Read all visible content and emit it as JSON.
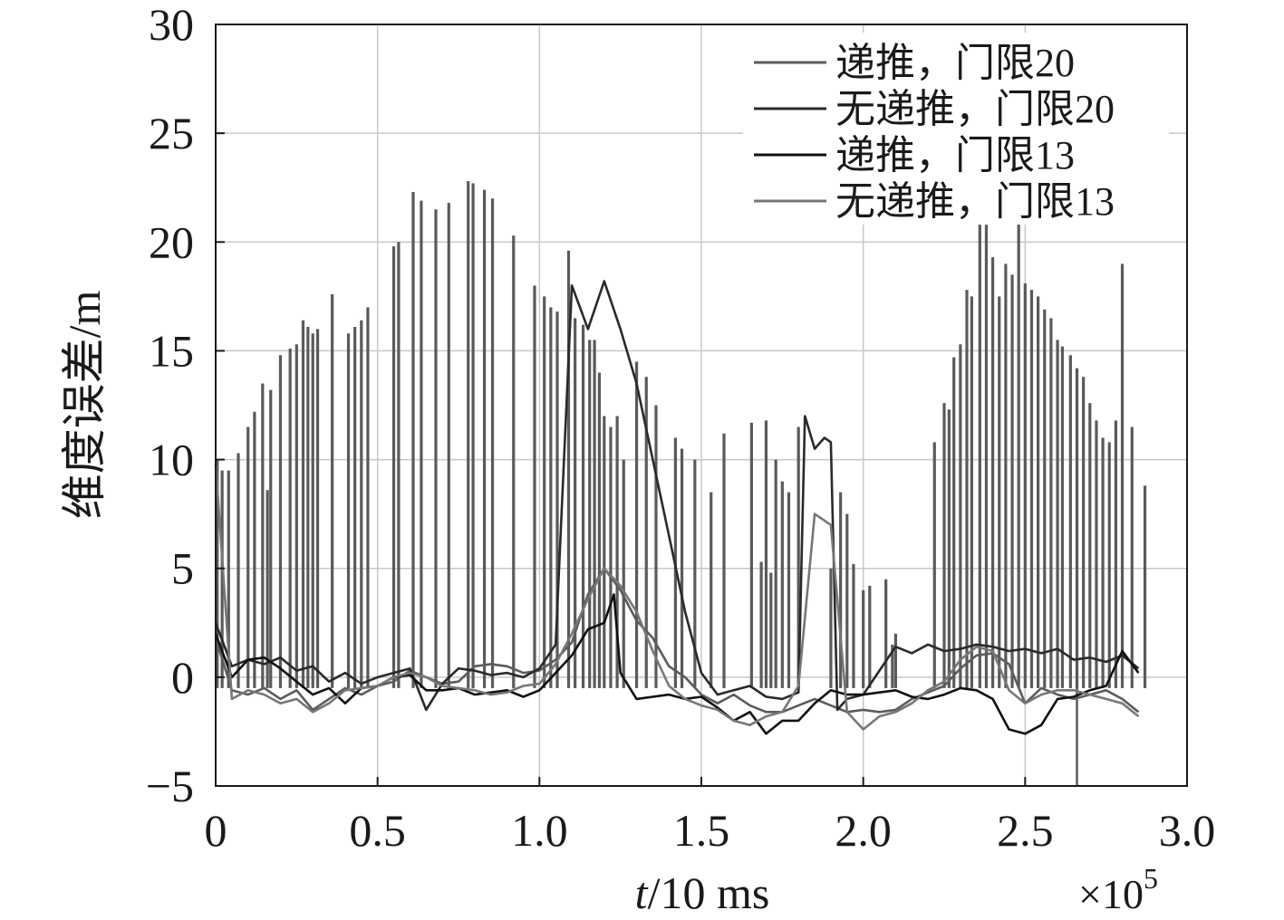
{
  "chart_data": {
    "type": "line",
    "title": "",
    "xlabel_italic": "t",
    "xlabel_rest": "/10 ms",
    "ylabel": "维度误差/m",
    "x_multiplier": "×10",
    "x_multiplier_exp": "5",
    "xlim": [
      0,
      3.0
    ],
    "ylim": [
      -5,
      30
    ],
    "xticks": [
      "0",
      "0.5",
      "1.0",
      "1.5",
      "2.0",
      "2.5",
      "3.0"
    ],
    "yticks": [
      "30",
      "25",
      "20",
      "15",
      "10",
      "5",
      "0",
      "−5"
    ],
    "grid": true,
    "legend_position": "top-right",
    "series": [
      {
        "name": "递推，门限20",
        "color": "#5c5c5c",
        "x": [
          0,
          0.05,
          0.1,
          0.15,
          0.2,
          0.25,
          0.3,
          0.35,
          0.4,
          0.45,
          0.5,
          0.55,
          0.6,
          0.65,
          0.7,
          0.75,
          0.8,
          0.85,
          0.9,
          0.95,
          1.0,
          1.05,
          1.1,
          1.15,
          1.2,
          1.25,
          1.3,
          1.35,
          1.4,
          1.45,
          1.5,
          1.55,
          1.6,
          1.65,
          1.7,
          1.75,
          1.8,
          1.85,
          1.9,
          1.95,
          2.0,
          2.05,
          2.1,
          2.15,
          2.2,
          2.25,
          2.3,
          2.35,
          2.4,
          2.45,
          2.5,
          2.55,
          2.6,
          2.65,
          2.7,
          2.75,
          2.8,
          2.85
        ],
        "y": [
          1.8,
          -0.6,
          -0.8,
          -0.5,
          -1.0,
          -0.6,
          -1.5,
          -1.0,
          -0.5,
          -0.8,
          -0.4,
          -0.2,
          0.3,
          0.0,
          -0.3,
          -0.2,
          0.5,
          0.6,
          0.5,
          0.2,
          0.3,
          0.8,
          1.6,
          3.8,
          5.0,
          4.0,
          2.6,
          1.8,
          0.5,
          0.0,
          -0.8,
          -1.2,
          -0.8,
          -1.3,
          -1.6,
          -1.6,
          -1.3,
          -1.0,
          -1.3,
          -1.6,
          -1.5,
          -1.6,
          -1.5,
          -1.0,
          -0.7,
          -0.4,
          0.4,
          1.0,
          1.1,
          0.6,
          -1.2,
          -0.5,
          -0.8,
          -1.0,
          -0.8,
          -0.6,
          -1.0,
          -1.6
        ]
      },
      {
        "name": "无递推，门限20",
        "color": "#2a2a2a",
        "x": [
          0,
          0.05,
          0.1,
          0.15,
          0.2,
          0.25,
          0.3,
          0.35,
          0.4,
          0.45,
          0.5,
          0.55,
          0.6,
          0.65,
          0.7,
          0.75,
          0.8,
          0.85,
          0.9,
          0.95,
          1.0,
          1.05,
          1.1,
          1.15,
          1.2,
          1.25,
          1.3,
          1.35,
          1.4,
          1.45,
          1.5,
          1.55,
          1.6,
          1.65,
          1.7,
          1.75,
          1.8,
          1.82,
          1.85,
          1.88,
          1.9,
          1.92,
          1.95,
          2.0,
          2.05,
          2.1,
          2.15,
          2.2,
          2.25,
          2.3,
          2.35,
          2.4,
          2.45,
          2.5,
          2.55,
          2.6,
          2.65,
          2.7,
          2.75,
          2.8,
          2.85
        ],
        "y": [
          2.5,
          0.5,
          0.8,
          0.6,
          0.9,
          0.3,
          0.5,
          -0.2,
          0.2,
          -0.3,
          0.0,
          0.2,
          0.4,
          -1.5,
          -0.3,
          0.4,
          0.3,
          0.1,
          0.2,
          0.0,
          0.4,
          1.5,
          18.0,
          16.0,
          18.2,
          16.0,
          13.5,
          10.0,
          6.5,
          3.0,
          0.2,
          -0.8,
          -0.6,
          -0.4,
          -0.9,
          -1.0,
          -0.7,
          12.0,
          10.5,
          11.0,
          10.8,
          -1.5,
          -1.0,
          -0.8,
          0.3,
          1.4,
          1.1,
          1.5,
          1.2,
          1.3,
          1.5,
          1.4,
          1.2,
          1.3,
          1.1,
          1.3,
          0.8,
          0.9,
          0.7,
          1.0,
          0.4
        ]
      },
      {
        "name": "递推，门限13",
        "color": "#111111",
        "x": [
          0,
          0.05,
          0.1,
          0.15,
          0.2,
          0.25,
          0.3,
          0.35,
          0.4,
          0.45,
          0.5,
          0.55,
          0.6,
          0.65,
          0.7,
          0.75,
          0.8,
          0.85,
          0.9,
          0.95,
          1.0,
          1.05,
          1.1,
          1.15,
          1.2,
          1.23,
          1.25,
          1.3,
          1.35,
          1.4,
          1.45,
          1.5,
          1.55,
          1.6,
          1.65,
          1.7,
          1.75,
          1.8,
          1.85,
          1.9,
          1.95,
          2.0,
          2.05,
          2.1,
          2.15,
          2.2,
          2.25,
          2.3,
          2.35,
          2.4,
          2.45,
          2.5,
          2.55,
          2.6,
          2.65,
          2.7,
          2.75,
          2.8,
          2.85
        ],
        "y": [
          2.0,
          0.0,
          0.8,
          0.9,
          0.4,
          -0.2,
          -0.8,
          -0.5,
          -1.2,
          -0.5,
          -0.4,
          0.0,
          0.1,
          -0.6,
          -0.6,
          -0.5,
          -0.8,
          -0.7,
          -0.6,
          -0.9,
          -0.6,
          0.2,
          1.0,
          2.2,
          2.5,
          3.8,
          0.2,
          -1.0,
          -0.9,
          -0.8,
          -1.0,
          -0.9,
          -1.4,
          -2.0,
          -1.6,
          -2.6,
          -2.0,
          -2.0,
          -1.2,
          -0.6,
          -0.8,
          -0.8,
          -0.7,
          -0.6,
          -0.9,
          -1.0,
          -0.8,
          -0.5,
          -0.6,
          -1.0,
          -2.4,
          -2.6,
          -2.2,
          -1.0,
          -0.9,
          -0.6,
          -0.4,
          1.2,
          0.2
        ]
      },
      {
        "name": "无递推，门限13",
        "color": "#777777",
        "x": [
          0,
          0.05,
          0.1,
          0.15,
          0.2,
          0.25,
          0.3,
          0.35,
          0.4,
          0.45,
          0.5,
          0.55,
          0.6,
          0.65,
          0.7,
          0.75,
          0.8,
          0.85,
          0.9,
          0.95,
          1.0,
          1.05,
          1.1,
          1.15,
          1.2,
          1.25,
          1.3,
          1.35,
          1.4,
          1.45,
          1.5,
          1.55,
          1.6,
          1.65,
          1.7,
          1.75,
          1.8,
          1.85,
          1.9,
          1.95,
          2.0,
          2.05,
          2.1,
          2.15,
          2.2,
          2.25,
          2.3,
          2.35,
          2.4,
          2.45,
          2.5,
          2.55,
          2.6,
          2.65,
          2.7,
          2.75,
          2.8,
          2.85
        ],
        "y": [
          9.8,
          -1.0,
          -0.6,
          -0.8,
          -1.2,
          -1.0,
          -1.6,
          -1.2,
          -0.6,
          -0.5,
          -0.4,
          0.0,
          0.2,
          0.0,
          -0.4,
          -0.5,
          -0.6,
          -0.8,
          -0.7,
          -0.4,
          -0.3,
          0.6,
          2.0,
          3.6,
          5.0,
          4.2,
          3.0,
          1.2,
          -0.4,
          -1.0,
          -1.3,
          -1.5,
          -2.0,
          -2.2,
          -1.8,
          -1.6,
          -0.4,
          7.5,
          7.0,
          -1.6,
          -2.4,
          -1.8,
          -1.6,
          -1.2,
          -0.6,
          -0.2,
          0.8,
          1.4,
          1.2,
          -0.6,
          -1.2,
          -0.8,
          -0.6,
          -0.6,
          -0.8,
          -1.0,
          -1.2,
          -1.8
        ]
      }
    ],
    "spike_series": {
      "name": "无递推，门限13",
      "color": "#5a5a5a",
      "peaks": [
        [
          0.005,
          10.0
        ],
        [
          0.02,
          9.5
        ],
        [
          0.04,
          9.5
        ],
        [
          0.07,
          10.3
        ],
        [
          0.1,
          11.5
        ],
        [
          0.12,
          12.2
        ],
        [
          0.145,
          13.5
        ],
        [
          0.16,
          8.6
        ],
        [
          0.17,
          13.2
        ],
        [
          0.2,
          14.8
        ],
        [
          0.23,
          15.1
        ],
        [
          0.25,
          15.3
        ],
        [
          0.27,
          16.4
        ],
        [
          0.285,
          16.1
        ],
        [
          0.3,
          15.8
        ],
        [
          0.315,
          16.0
        ],
        [
          0.36,
          17.6
        ],
        [
          0.41,
          15.8
        ],
        [
          0.43,
          16.1
        ],
        [
          0.45,
          16.4
        ],
        [
          0.47,
          17.0
        ],
        [
          0.55,
          19.8
        ],
        [
          0.565,
          20.0
        ],
        [
          0.61,
          22.3
        ],
        [
          0.635,
          21.9
        ],
        [
          0.68,
          21.5
        ],
        [
          0.72,
          21.8
        ],
        [
          0.78,
          22.8
        ],
        [
          0.795,
          22.7
        ],
        [
          0.83,
          22.4
        ],
        [
          0.855,
          22.0
        ],
        [
          0.92,
          20.3
        ],
        [
          0.985,
          18.0
        ],
        [
          1.015,
          17.5
        ],
        [
          1.035,
          17.0
        ],
        [
          1.055,
          16.8
        ],
        [
          1.09,
          19.6
        ],
        [
          1.11,
          16.5
        ],
        [
          1.135,
          16.2
        ],
        [
          1.155,
          15.5
        ],
        [
          1.17,
          15.5
        ],
        [
          1.185,
          14.0
        ],
        [
          1.2,
          12.0
        ],
        [
          1.22,
          11.5
        ],
        [
          1.24,
          12.0
        ],
        [
          1.26,
          10.0
        ],
        [
          1.3,
          14.5
        ],
        [
          1.33,
          13.8
        ],
        [
          1.36,
          12.5
        ],
        [
          1.42,
          11.0
        ],
        [
          1.44,
          10.5
        ],
        [
          1.48,
          10.0
        ],
        [
          1.53,
          8.5
        ],
        [
          1.57,
          11.2
        ],
        [
          1.655,
          11.7
        ],
        [
          1.685,
          5.3
        ],
        [
          1.7,
          11.8
        ],
        [
          1.715,
          4.8
        ],
        [
          1.73,
          10.0
        ],
        [
          1.75,
          9.0
        ],
        [
          1.77,
          8.5
        ],
        [
          1.8,
          11.5
        ],
        [
          1.9,
          5.0
        ],
        [
          1.93,
          8.5
        ],
        [
          1.95,
          7.5
        ],
        [
          1.97,
          5.2
        ],
        [
          2.0,
          4.0
        ],
        [
          2.02,
          4.2
        ],
        [
          2.07,
          4.5
        ],
        [
          2.09,
          1.5
        ],
        [
          2.1,
          2.0
        ],
        [
          2.22,
          10.8
        ],
        [
          2.25,
          12.6
        ],
        [
          2.265,
          12.3
        ],
        [
          2.28,
          14.7
        ],
        [
          2.3,
          15.3
        ],
        [
          2.32,
          17.8
        ],
        [
          2.335,
          17.5
        ],
        [
          2.36,
          20.8
        ],
        [
          2.38,
          20.8
        ],
        [
          2.4,
          19.3
        ],
        [
          2.42,
          17.5
        ],
        [
          2.44,
          19.0
        ],
        [
          2.46,
          18.5
        ],
        [
          2.48,
          21.0
        ],
        [
          2.5,
          18.1
        ],
        [
          2.52,
          17.8
        ],
        [
          2.54,
          17.5
        ],
        [
          2.56,
          16.9
        ],
        [
          2.58,
          16.5
        ],
        [
          2.6,
          15.5
        ],
        [
          2.615,
          15.2
        ],
        [
          2.64,
          14.8
        ],
        [
          2.66,
          14.2
        ],
        [
          2.68,
          13.8
        ],
        [
          2.7,
          12.6
        ],
        [
          2.72,
          11.8
        ],
        [
          2.74,
          11.0
        ],
        [
          2.76,
          10.8
        ],
        [
          2.78,
          11.8
        ],
        [
          2.8,
          19.0
        ],
        [
          2.83,
          11.5
        ],
        [
          2.87,
          8.8
        ]
      ],
      "dips": [
        [
          2.66,
          -5.0
        ]
      ]
    }
  }
}
